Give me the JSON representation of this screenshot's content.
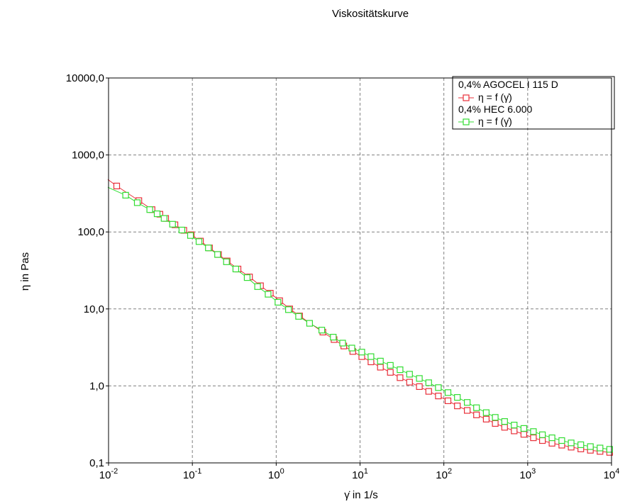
{
  "chart_data": {
    "type": "line",
    "title": "Viskositätskurve",
    "ylabel": "η in Pas",
    "xlabel": "γ̇ in 1/s",
    "x_scale": "log",
    "y_scale": "log",
    "xlim": [
      0.01,
      10000
    ],
    "ylim": [
      0.1,
      10000
    ],
    "grid": true,
    "legend_position": "top-right",
    "x_ticks": [
      {
        "value": 0.01,
        "base": "10",
        "exp": "-2"
      },
      {
        "value": 0.1,
        "base": "10",
        "exp": "-1"
      },
      {
        "value": 1,
        "base": "10",
        "exp": "0"
      },
      {
        "value": 10,
        "base": "10",
        "exp": "1"
      },
      {
        "value": 100,
        "base": "10",
        "exp": "2"
      },
      {
        "value": 1000,
        "base": "10",
        "exp": "3"
      },
      {
        "value": 10000,
        "base": "10",
        "exp": "4"
      }
    ],
    "y_ticks": [
      {
        "value": 0.1,
        "label": "0,1"
      },
      {
        "value": 1,
        "label": "1,0"
      },
      {
        "value": 10,
        "label": "10,0"
      },
      {
        "value": 100,
        "label": "100,0"
      },
      {
        "value": 1000,
        "label": "1000,0"
      },
      {
        "value": 10000,
        "label": "10000,0"
      }
    ],
    "series": [
      {
        "sample": "0,4% AGOCEL I 115 D",
        "name": "η = f (γ̇)",
        "color": "#e8303a",
        "marker": "square",
        "x": [
          0.0098,
          0.0125,
          0.023,
          0.033,
          0.041,
          0.048,
          0.062,
          0.079,
          0.097,
          0.125,
          0.16,
          0.205,
          0.26,
          0.35,
          0.48,
          0.65,
          0.85,
          1.1,
          1.45,
          1.9,
          3.6,
          4.9,
          6.4,
          8.2,
          10.5,
          13.5,
          17.5,
          23,
          30,
          39,
          51,
          66,
          86,
          112,
          145,
          190,
          245,
          320,
          410,
          530,
          690,
          900,
          1170,
          1500,
          1950,
          2550,
          3300,
          4300,
          5600,
          7300,
          9500
        ],
        "y": [
          480,
          395,
          255,
          195,
          170,
          150,
          124,
          105,
          92,
          76,
          62,
          51,
          42,
          33,
          26,
          20,
          16,
          12.8,
          10,
          8.1,
          5.0,
          4.0,
          3.3,
          2.8,
          2.4,
          2.05,
          1.75,
          1.5,
          1.28,
          1.12,
          0.98,
          0.85,
          0.74,
          0.64,
          0.55,
          0.48,
          0.42,
          0.37,
          0.325,
          0.29,
          0.26,
          0.235,
          0.212,
          0.195,
          0.18,
          0.17,
          0.16,
          0.152,
          0.146,
          0.141,
          0.137
        ]
      },
      {
        "sample": "0,4% HEC 6.000",
        "name": "η = f (γ̇)",
        "color": "#33dd33",
        "marker": "square",
        "x": [
          0.0098,
          0.016,
          0.022,
          0.031,
          0.038,
          0.046,
          0.058,
          0.075,
          0.095,
          0.12,
          0.155,
          0.2,
          0.255,
          0.33,
          0.45,
          0.6,
          0.8,
          1.05,
          1.4,
          1.85,
          2.5,
          3.5,
          4.8,
          6.2,
          8.0,
          10.5,
          13.5,
          17.5,
          23,
          30,
          39,
          51,
          66,
          86,
          112,
          145,
          190,
          245,
          320,
          410,
          530,
          690,
          900,
          1170,
          1500,
          1950,
          2550,
          3300,
          4300,
          5600,
          7300,
          9500
        ],
        "y": [
          380,
          300,
          240,
          195,
          172,
          150,
          126,
          106,
          90,
          75,
          62,
          51,
          41,
          33,
          25.5,
          19.5,
          15.5,
          12.2,
          9.8,
          8,
          6.5,
          5.3,
          4.3,
          3.6,
          3.1,
          2.75,
          2.4,
          2.1,
          1.85,
          1.62,
          1.42,
          1.25,
          1.1,
          0.95,
          0.82,
          0.71,
          0.61,
          0.52,
          0.45,
          0.39,
          0.345,
          0.31,
          0.28,
          0.255,
          0.232,
          0.212,
          0.195,
          0.182,
          0.172,
          0.163,
          0.156,
          0.15
        ]
      }
    ]
  }
}
